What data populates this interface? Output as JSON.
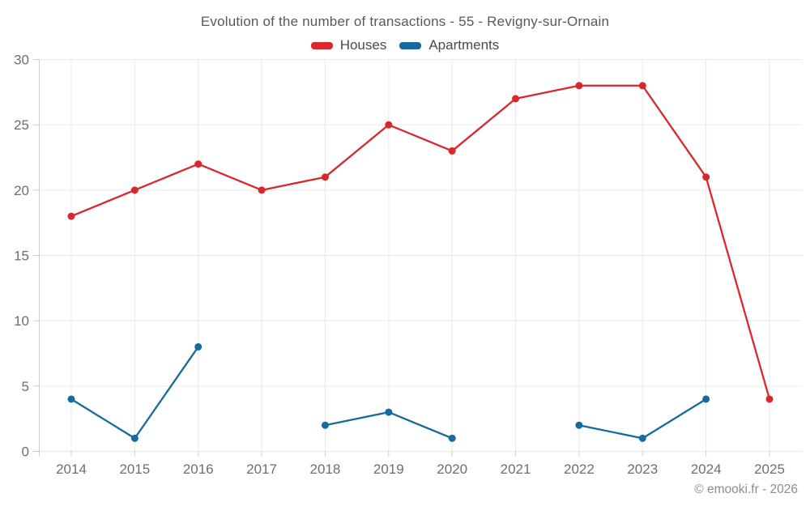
{
  "title": "Evolution of the number of transactions - 55 - Revigny-sur-Ornain",
  "footer": "© emooki.fr - 2026",
  "theme": {
    "background": "#ffffff",
    "grid": "#e9e9e9",
    "tick": "#cccccc",
    "tick_text": "#6e6e6e",
    "title_text": "#595959",
    "legend_text": "#4a4a4a",
    "footer_text": "#8c8c8c",
    "houses_red": "#d8282e",
    "apartments_blue": "#156a9e"
  },
  "chart_data": {
    "type": "line",
    "title": "Evolution of the number of transactions - 55 - Revigny-sur-Ornain",
    "categories": [
      "2014",
      "2015",
      "2016",
      "2017",
      "2018",
      "2019",
      "2020",
      "2021",
      "2022",
      "2023",
      "2024",
      "2025"
    ],
    "series": [
      {
        "name": "Houses",
        "color": "#d8282e",
        "values": [
          18,
          20,
          22,
          20,
          21,
          25,
          23,
          27,
          28,
          28,
          21,
          4
        ]
      },
      {
        "name": "Apartments",
        "color": "#156a9e",
        "values": [
          4,
          1,
          8,
          null,
          2,
          3,
          1,
          null,
          2,
          1,
          4,
          null
        ]
      }
    ],
    "xlabel": "",
    "ylabel": "",
    "ylim": [
      0,
      30
    ],
    "yticks": [
      0,
      5,
      10,
      15,
      20,
      25,
      30
    ],
    "grid": true,
    "legend_position": "top",
    "marker": "circle"
  }
}
